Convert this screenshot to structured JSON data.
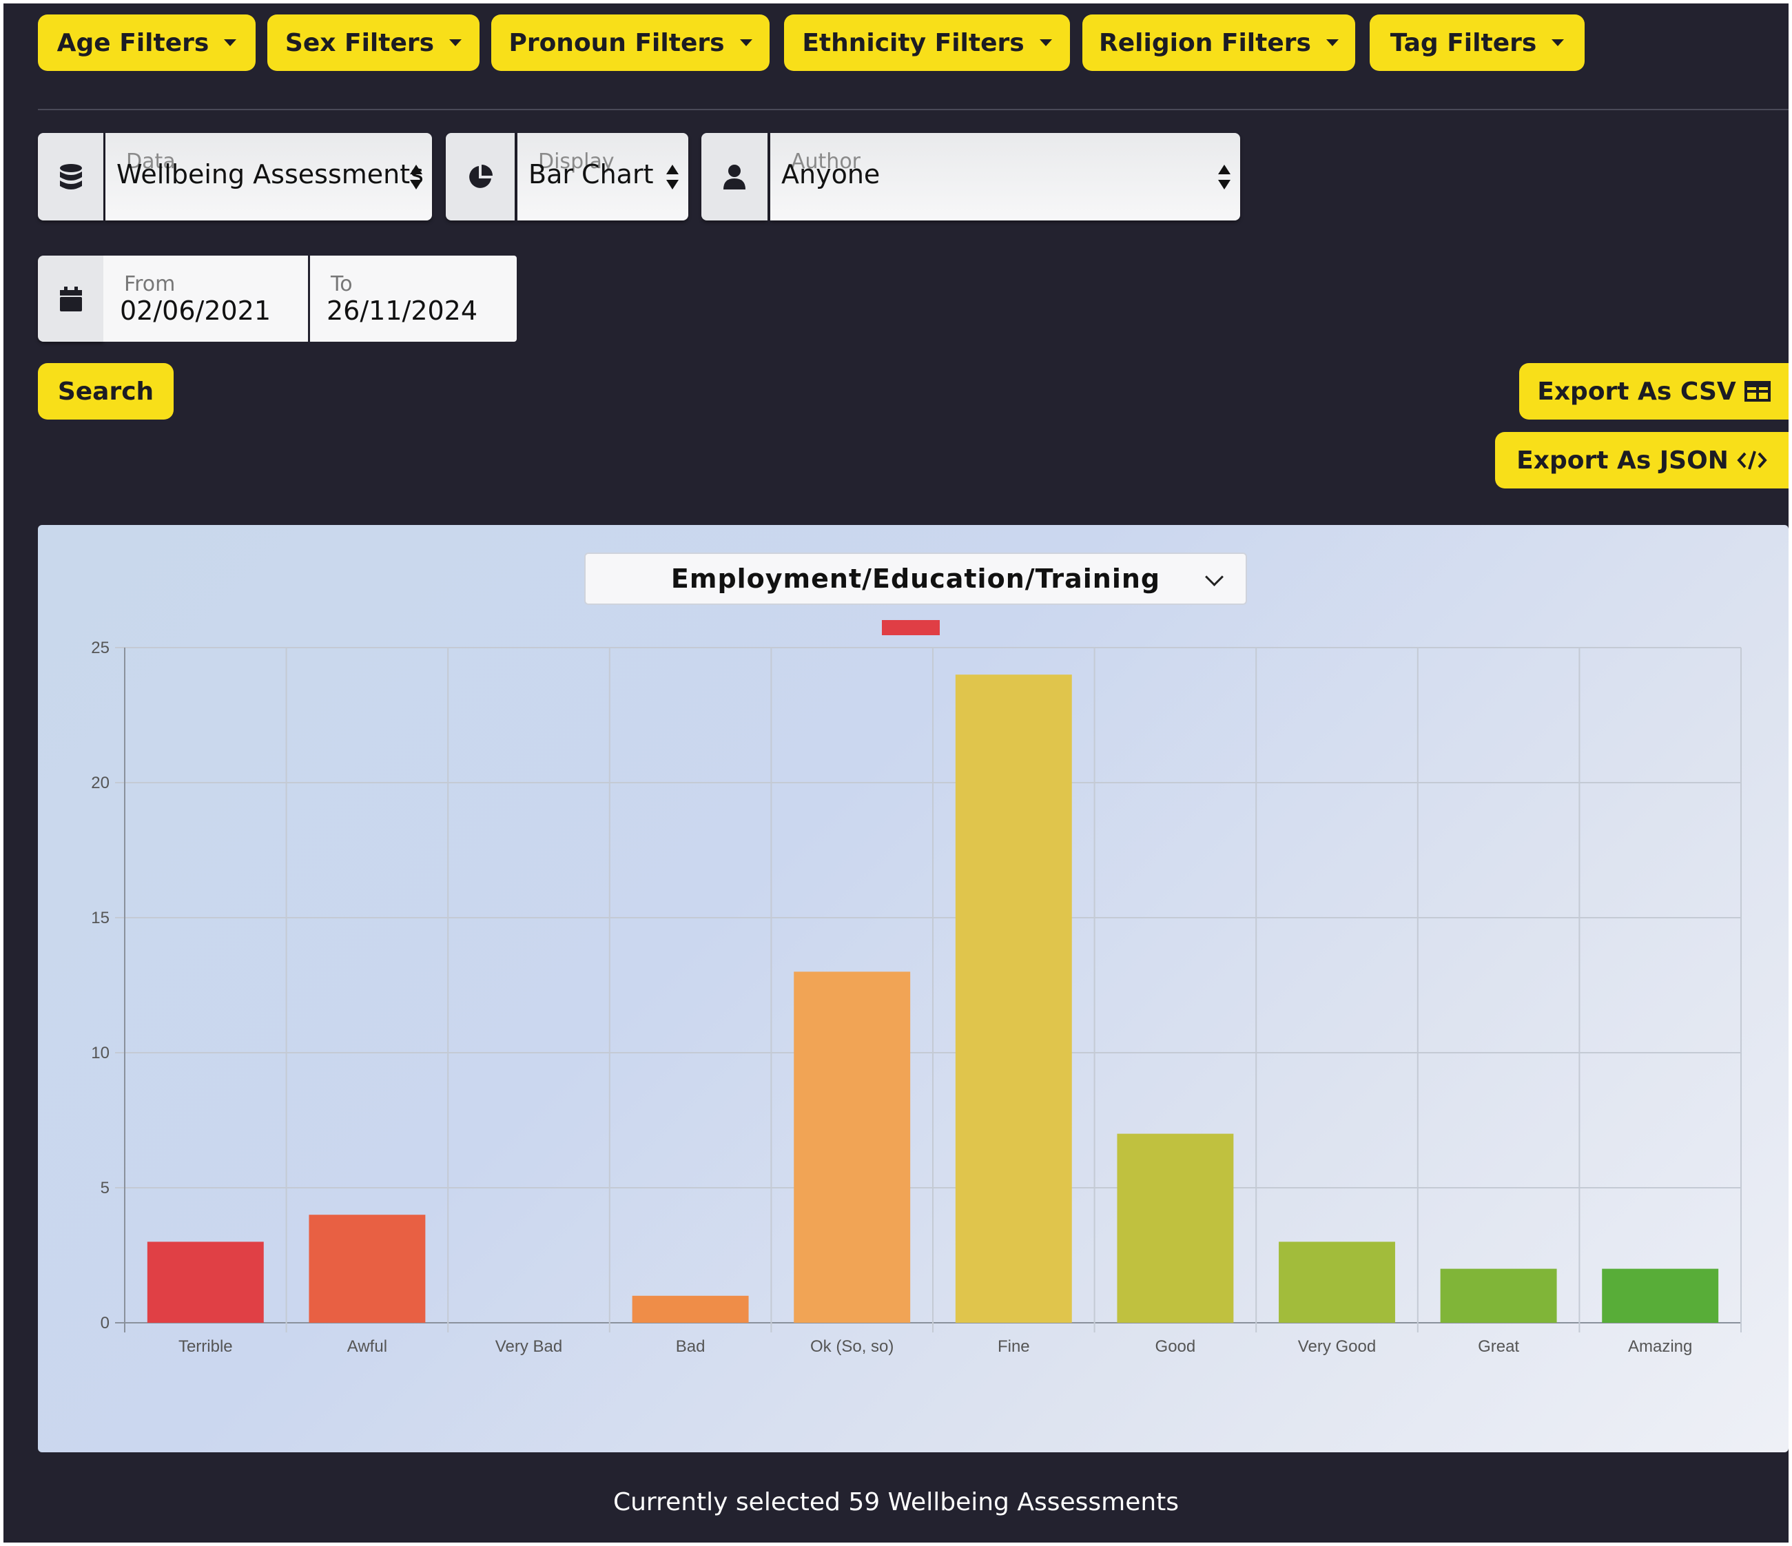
{
  "filters": [
    {
      "label": "Age Filters"
    },
    {
      "label": "Sex Filters"
    },
    {
      "label": "Pronoun Filters"
    },
    {
      "label": "Ethnicity Filters"
    },
    {
      "label": "Religion Filters"
    },
    {
      "label": "Tag Filters"
    }
  ],
  "controls": {
    "data": {
      "label": "Data",
      "value": "Wellbeing Assessments",
      "icon": "database-icon"
    },
    "display": {
      "label": "Display",
      "value": "Bar Chart",
      "icon": "pie-chart-icon"
    },
    "author": {
      "label": "Author",
      "value": "Anyone",
      "icon": "user-icon"
    }
  },
  "dates": {
    "from_label": "From",
    "from_value": "02/06/2021",
    "to_label": "To",
    "to_value": "26/11/2024",
    "icon": "calendar-icon"
  },
  "search_label": "Search",
  "export": {
    "csv_label": "Export As CSV",
    "csv_icon": "table-icon",
    "json_label": "Export As JSON",
    "json_icon": "code-icon"
  },
  "chart_select": {
    "value": "Employment/Education/Training"
  },
  "summary": "Currently selected 59 Wellbeing Assessments",
  "colors": {
    "background": "#23222f",
    "accent": "#f8df19"
  },
  "chart_data": {
    "type": "bar",
    "categories": [
      "Terrible",
      "Awful",
      "Very Bad",
      "Bad",
      "Ok (So, so)",
      "Fine",
      "Good",
      "Very Good",
      "Great",
      "Amazing"
    ],
    "values": [
      3,
      4,
      0,
      1,
      13,
      24,
      7,
      3,
      2,
      2
    ],
    "colors": [
      "#e04045",
      "#e86043",
      "#ec7a44",
      "#ef8d48",
      "#f1a455",
      "#e0c54c",
      "#c0c13f",
      "#a2bc3b",
      "#80b538",
      "#58ad38"
    ],
    "ylim": [
      0,
      25
    ],
    "yticks": [
      0,
      5,
      10,
      15,
      20,
      25
    ],
    "grid": true,
    "legend": "top"
  }
}
